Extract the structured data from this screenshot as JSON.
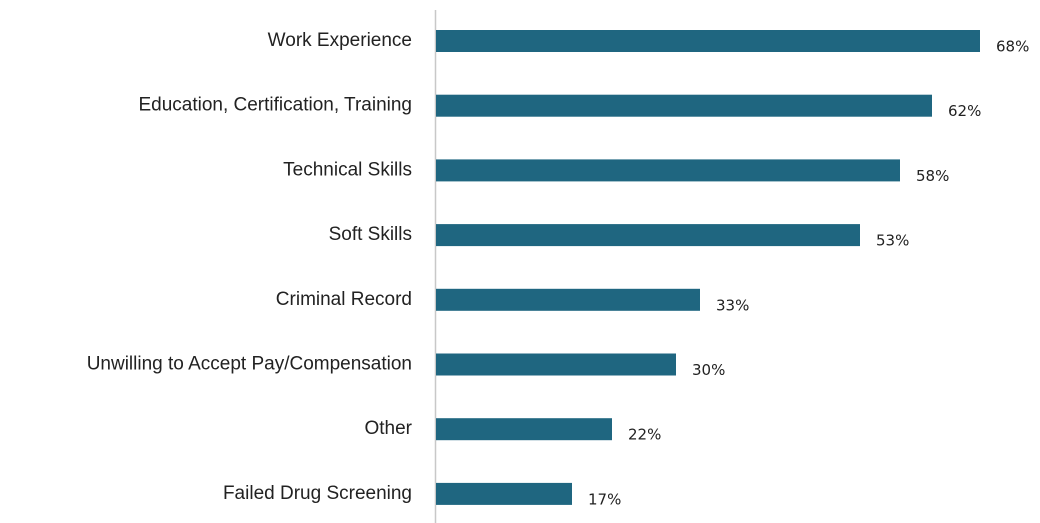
{
  "chart_data": {
    "type": "bar",
    "orientation": "horizontal",
    "categories": [
      "Work Experience",
      "Education, Certification, Training",
      "Technical Skills",
      "Soft Skills",
      "Criminal Record",
      "Unwilling to Accept Pay/Compensation",
      "Other",
      "Failed Drug Screening"
    ],
    "values": [
      68,
      62,
      58,
      53,
      33,
      30,
      22,
      17
    ],
    "value_labels": [
      "68%",
      "62%",
      "58%",
      "53%",
      "33%",
      "30%",
      "22%",
      "17%"
    ],
    "color": "#1f6680"
  }
}
